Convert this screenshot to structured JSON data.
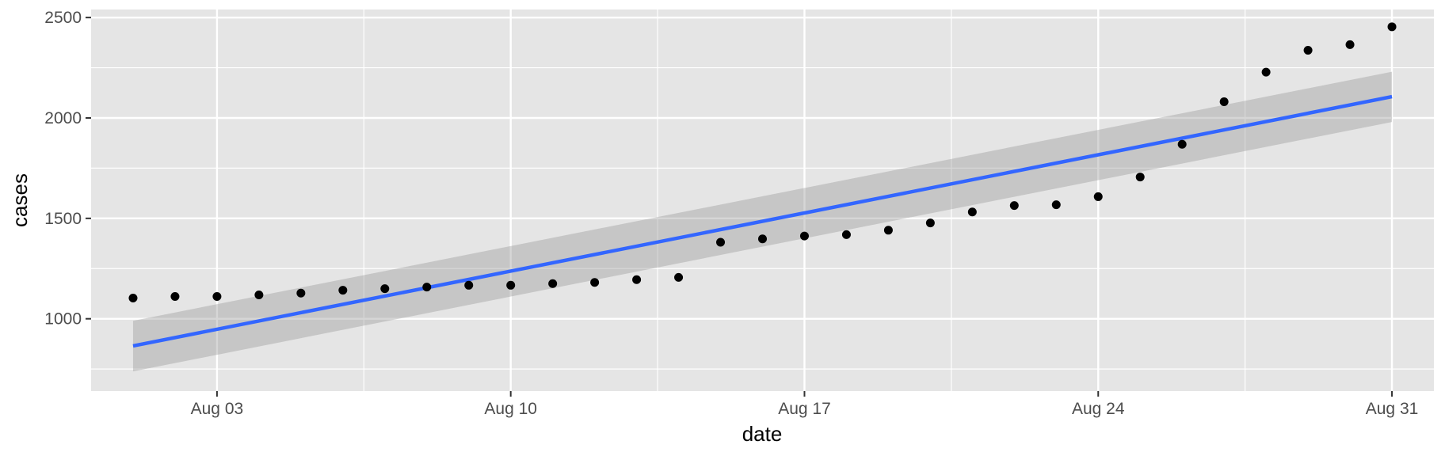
{
  "chart_data": {
    "type": "scatter",
    "title": "",
    "xlabel": "date",
    "ylabel": "cases",
    "x_ticks": [
      "Aug 03",
      "Aug 10",
      "Aug 17",
      "Aug 24",
      "Aug 31"
    ],
    "x_tick_dates": [
      "2020-08-03",
      "2020-08-10",
      "2020-08-17",
      "2020-08-24",
      "2020-08-31"
    ],
    "xlim": [
      "2020-07-31",
      "2020-09-01"
    ],
    "y_ticks": [
      1000,
      1500,
      2000,
      2500
    ],
    "ylim": [
      640,
      2540
    ],
    "grid": true,
    "legend": "none",
    "series": [
      {
        "type": "points",
        "x": [
          "2020-08-01",
          "2020-08-02",
          "2020-08-03",
          "2020-08-04",
          "2020-08-05",
          "2020-08-06",
          "2020-08-07",
          "2020-08-08",
          "2020-08-09",
          "2020-08-10",
          "2020-08-11",
          "2020-08-12",
          "2020-08-13",
          "2020-08-14",
          "2020-08-15",
          "2020-08-16",
          "2020-08-17",
          "2020-08-18",
          "2020-08-19",
          "2020-08-20",
          "2020-08-21",
          "2020-08-22",
          "2020-08-23",
          "2020-08-24",
          "2020-08-25",
          "2020-08-26",
          "2020-08-27",
          "2020-08-28",
          "2020-08-29",
          "2020-08-30",
          "2020-08-31"
        ],
        "y": [
          1103,
          1111,
          1111,
          1119,
          1128,
          1142,
          1150,
          1158,
          1167,
          1167,
          1175,
          1181,
          1195,
          1206,
          1381,
          1398,
          1412,
          1419,
          1441,
          1477,
          1532,
          1564,
          1568,
          1608,
          1706,
          1869,
          2081,
          2228,
          2337,
          2365,
          2454
        ]
      },
      {
        "type": "linear-fit",
        "x": [
          "2020-08-01",
          "2020-08-31"
        ],
        "y": [
          865,
          2106
        ],
        "ci_lower": [
          738,
          1980
        ],
        "ci_upper": [
          990,
          2230
        ]
      }
    ],
    "colors": {
      "panel": "#e5e5e5",
      "grid_major": "#ffffff",
      "point": "#000000",
      "fit_line": "#3366ff",
      "ci_band": "#999999"
    }
  }
}
